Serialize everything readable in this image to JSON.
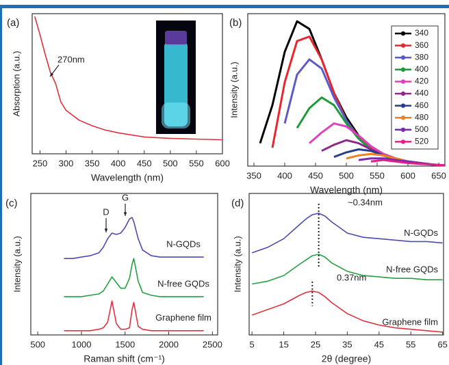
{
  "chart_data": [
    {
      "type": "line",
      "panel_label": "(a)",
      "x_label": "Wavelength (nm)",
      "y_label": "Absorption (a.u.)",
      "x": [
        240,
        250,
        260,
        270,
        280,
        290,
        300,
        325,
        350,
        375,
        400,
        450,
        500,
        550,
        600
      ],
      "series": [
        {
          "color": "#e0303e",
          "values": [
            98,
            85,
            71,
            58,
            50,
            37,
            31,
            24,
            20,
            17,
            15,
            12,
            11,
            10.5,
            10
          ]
        }
      ],
      "xlim": [
        235,
        600
      ],
      "xticks": [
        250,
        300,
        350,
        400,
        450,
        500,
        550,
        600
      ],
      "ylim": [
        0,
        100
      ],
      "annotations": [
        "270nm"
      ]
    },
    {
      "type": "line",
      "panel_label": "(b)",
      "x_label": "Wavelength (nm)",
      "y_label": "Intensity (a.u.)",
      "x": [
        360,
        380,
        400,
        420,
        440,
        460,
        480,
        500,
        520,
        540,
        560,
        580,
        600,
        620,
        640,
        660
      ],
      "series": [
        {
          "name": "340",
          "color": "#000000",
          "values": [
            15,
            40,
            75,
            95,
            90,
            70,
            48,
            32,
            20,
            13,
            8,
            5,
            3,
            2,
            1,
            0.5
          ]
        },
        {
          "name": "360",
          "color": "#e8262b",
          "values": [
            null,
            12,
            55,
            82,
            85,
            70,
            48,
            30,
            19,
            12,
            8,
            5,
            3,
            2,
            1,
            0.5
          ]
        },
        {
          "name": "380",
          "color": "#5a5ac8",
          "values": [
            null,
            null,
            28,
            60,
            70,
            64,
            45,
            30,
            18,
            11,
            7,
            4,
            3,
            2,
            1,
            0.5
          ]
        },
        {
          "name": "400",
          "color": "#1e9a3a",
          "values": [
            null,
            null,
            null,
            25,
            38,
            45,
            40,
            28,
            18,
            11,
            7,
            4,
            3,
            2,
            1,
            0.5
          ]
        },
        {
          "name": "420",
          "color": "#e040c0",
          "values": [
            null,
            null,
            null,
            null,
            15,
            22,
            28,
            26,
            20,
            13,
            8,
            5,
            3,
            2,
            1,
            0.5
          ]
        },
        {
          "name": "440",
          "color": "#8b2a8b",
          "values": [
            null,
            null,
            null,
            null,
            null,
            10,
            14,
            17,
            15,
            11,
            7,
            5,
            3,
            2,
            1,
            0.5
          ]
        },
        {
          "name": "460",
          "color": "#283c8c",
          "values": [
            null,
            null,
            null,
            null,
            null,
            null,
            6,
            9,
            11,
            10,
            7,
            5,
            3,
            2,
            1,
            0.5
          ]
        },
        {
          "name": "480",
          "color": "#f08020",
          "values": [
            null,
            null,
            null,
            null,
            null,
            null,
            null,
            5,
            7,
            8,
            7,
            5,
            3,
            2,
            1,
            0.5
          ]
        },
        {
          "name": "500",
          "color": "#7a2ab0",
          "values": [
            null,
            null,
            null,
            null,
            null,
            null,
            null,
            null,
            4,
            5,
            5,
            4,
            3,
            2,
            1,
            0.5
          ]
        },
        {
          "name": "520",
          "color": "#e0208a",
          "values": [
            null,
            null,
            null,
            null,
            null,
            null,
            null,
            null,
            null,
            3,
            4,
            3,
            2,
            1.5,
            1,
            0.5
          ]
        }
      ],
      "xlim": [
        340,
        660
      ],
      "xticks": [
        350,
        400,
        450,
        500,
        550,
        600,
        650
      ],
      "ylim": [
        0,
        100
      ],
      "legend": "upper right"
    },
    {
      "type": "line",
      "panel_label": "(c)",
      "x_label": "Raman shift (cm⁻¹)",
      "y_label": "Intensity (a.u.)",
      "x": [
        800,
        900,
        1000,
        1100,
        1200,
        1250,
        1300,
        1350,
        1400,
        1450,
        1500,
        1550,
        1580,
        1600,
        1650,
        1700,
        1800,
        1900,
        2000,
        2200,
        2400
      ],
      "series": [
        {
          "name": "N-GQDs",
          "color": "#4a4ab0",
          "values": [
            54,
            54,
            55,
            56,
            58,
            62,
            68,
            72,
            71,
            72,
            76,
            82,
            83,
            80,
            68,
            60,
            56,
            55,
            55,
            55,
            55
          ]
        },
        {
          "name": "N-free GQDs",
          "color": "#22a040",
          "values": [
            27,
            27,
            27,
            28,
            29,
            31,
            36,
            41,
            37,
            33,
            33,
            40,
            50,
            54,
            38,
            30,
            28,
            27,
            27,
            27,
            27
          ]
        },
        {
          "name": "Graphene film",
          "color": "#e0303e",
          "values": [
            3,
            3,
            3,
            3,
            4,
            5,
            9,
            24,
            8,
            4,
            4,
            5,
            18,
            23,
            6,
            4,
            3,
            3,
            3,
            3,
            3
          ]
        }
      ],
      "xlim": [
        420,
        2560
      ],
      "xticks": [
        500,
        1000,
        1500,
        2000,
        2500
      ],
      "ylim": [
        0,
        100
      ],
      "annotations": [
        "D",
        "G"
      ]
    },
    {
      "type": "line",
      "panel_label": "(d)",
      "x_label": "2θ (degree)",
      "y_label": "Intensity (a.u.)",
      "x": [
        5,
        10,
        15,
        20,
        22,
        24,
        26,
        28,
        30,
        35,
        40,
        45,
        50,
        55,
        60,
        65
      ],
      "series": [
        {
          "name": "N-GQDs",
          "color": "#4a4ab0",
          "values": [
            58,
            62,
            68,
            78,
            82,
            85,
            86,
            84,
            80,
            72,
            69,
            68,
            67,
            66,
            66,
            65
          ]
        },
        {
          "name": "N-free GQDs",
          "color": "#22a040",
          "values": [
            36,
            38,
            42,
            50,
            53,
            56,
            57,
            55,
            51,
            45,
            42,
            41,
            40,
            40,
            39,
            39
          ]
        },
        {
          "name": "Graphene film",
          "color": "#e0303e",
          "values": [
            14,
            18,
            22,
            28,
            30,
            31,
            30,
            27,
            23,
            15,
            10,
            7,
            5,
            4,
            3,
            2
          ]
        }
      ],
      "xlim": [
        4.1,
        65.3
      ],
      "xticks": [
        5,
        15,
        25,
        35,
        45,
        55,
        65
      ],
      "ylim": [
        0,
        100
      ],
      "annotations": [
        "~0.34nm",
        "0.37nm"
      ]
    }
  ]
}
